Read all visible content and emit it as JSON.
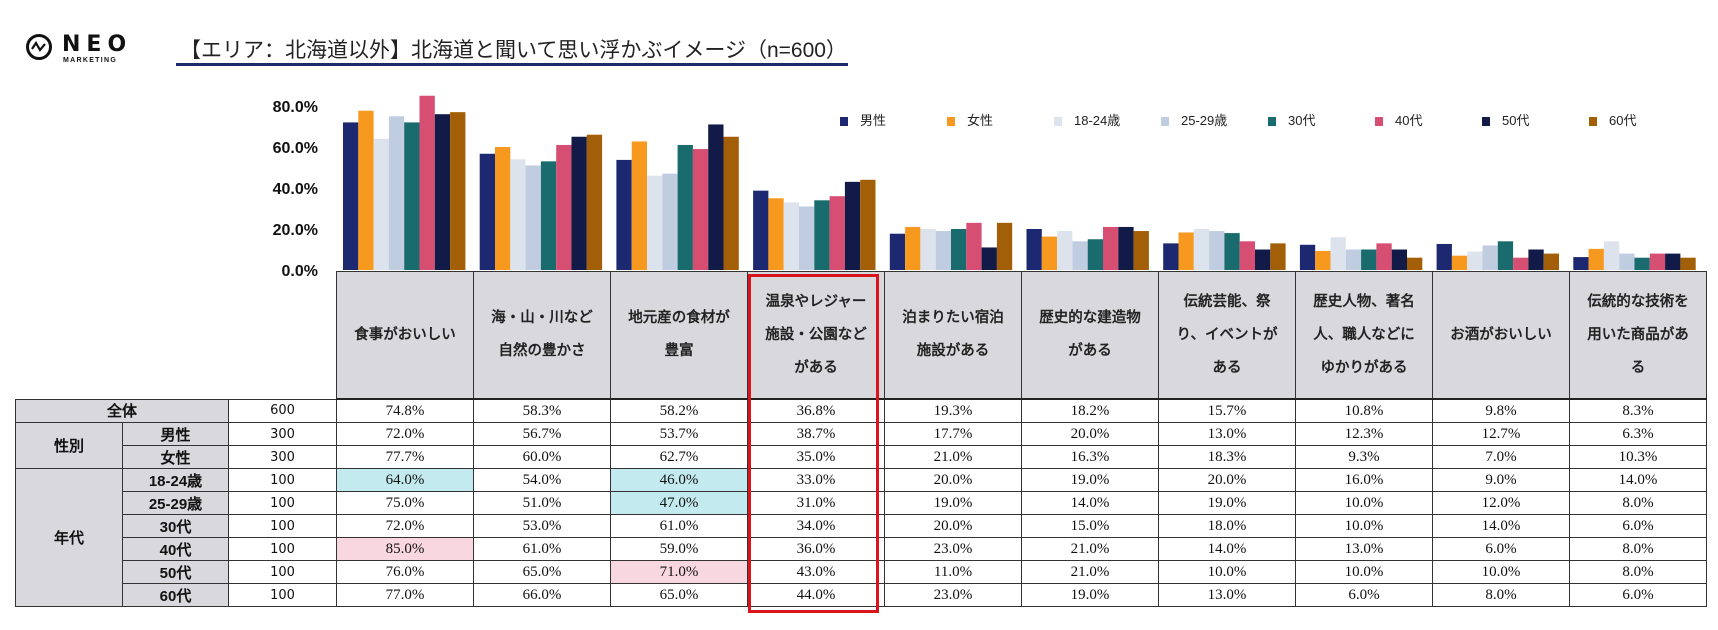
{
  "header": {
    "logo_main": "NEO",
    "logo_sub": "MARKETING",
    "title": "【エリア：北海道以外】北海道と聞いて思い浮かぶイメージ（n=600）"
  },
  "colors": {
    "title_underline": "#1f2a6b",
    "highlight_box": "#d9151b",
    "cell_high": "#f8d7e1",
    "cell_low": "#c3eaee",
    "header_bg": "#d9d8dc"
  },
  "chart_data": {
    "type": "bar",
    "title": "【エリア：北海道以外】北海道と聞いて思い浮かぶイメージ（n=600）",
    "xlabel": "",
    "ylabel": "",
    "ylim": [
      0,
      80
    ],
    "yticks": [
      "0.0%",
      "20.0%",
      "40.0%",
      "60.0%",
      "80.0%"
    ],
    "legend_position": "top-right",
    "categories": [
      "食事がおいしい",
      "海・山・川など自然の豊かさ",
      "地元産の食材が豊富",
      "温泉やレジャー施設・公園などがある",
      "泊まりたい宿泊施設がある",
      "歴史的な建造物がある",
      "伝統芸能、祭り、イベントがある",
      "歴史人物、著名人、職人などにゆかりがある",
      "お酒がおいしい",
      "伝統的な技術を用いた商品がある"
    ],
    "series": [
      {
        "name": "男性",
        "color": "#1c2870",
        "values": [
          72.0,
          56.7,
          53.7,
          38.7,
          17.7,
          20.0,
          13.0,
          12.3,
          12.7,
          6.3
        ]
      },
      {
        "name": "女性",
        "color": "#f7991f",
        "values": [
          77.7,
          60.0,
          62.7,
          35.0,
          21.0,
          16.3,
          18.3,
          9.3,
          7.0,
          10.3
        ]
      },
      {
        "name": "18-24歳",
        "color": "#dde3ed",
        "values": [
          64.0,
          54.0,
          46.0,
          33.0,
          20.0,
          19.0,
          20.0,
          16.0,
          9.0,
          14.0
        ]
      },
      {
        "name": "25-29歳",
        "color": "#c0cde0",
        "values": [
          75.0,
          51.0,
          47.0,
          31.0,
          19.0,
          14.0,
          19.0,
          10.0,
          12.0,
          8.0
        ]
      },
      {
        "name": "30代",
        "color": "#1a6b6d",
        "values": [
          72.0,
          53.0,
          61.0,
          34.0,
          20.0,
          15.0,
          18.0,
          10.0,
          14.0,
          6.0
        ]
      },
      {
        "name": "40代",
        "color": "#d64f72",
        "values": [
          85.0,
          61.0,
          59.0,
          36.0,
          23.0,
          21.0,
          14.0,
          13.0,
          6.0,
          8.0
        ]
      },
      {
        "name": "50代",
        "color": "#121a48",
        "values": [
          76.0,
          65.0,
          71.0,
          43.0,
          11.0,
          21.0,
          10.0,
          10.0,
          10.0,
          8.0
        ]
      },
      {
        "name": "60代",
        "color": "#a35f08",
        "values": [
          77.0,
          66.0,
          65.0,
          44.0,
          23.0,
          19.0,
          13.0,
          6.0,
          8.0,
          6.0
        ]
      }
    ]
  },
  "table": {
    "headers": [
      [
        "食事がおいしい"
      ],
      [
        "海・山・川など",
        "自然の豊かさ"
      ],
      [
        "地元産の食材が",
        "豊富"
      ],
      [
        "温泉やレジャー",
        "施設・公園など",
        "がある"
      ],
      [
        "泊まりたい宿泊",
        "施設がある"
      ],
      [
        "歴史的な建造物",
        "がある"
      ],
      [
        "伝統芸能、祭",
        "り、イベントが",
        "ある"
      ],
      [
        "歴史人物、著名",
        "人、職人などに",
        "ゆかりがある"
      ],
      [
        "お酒がおいしい"
      ],
      [
        "伝統的な技術を",
        "用いた商品があ",
        "る"
      ]
    ],
    "highlighted_column": 3,
    "groups": {
      "total": "全体",
      "gender": "性別",
      "age": "年代"
    },
    "rows": [
      {
        "label": "全体",
        "n": "600",
        "values": [
          "74.8%",
          "58.3%",
          "58.2%",
          "36.8%",
          "19.3%",
          "18.2%",
          "15.7%",
          "10.8%",
          "9.8%",
          "8.3%"
        ],
        "marks": {}
      },
      {
        "label": "男性",
        "n": "300",
        "values": [
          "72.0%",
          "56.7%",
          "53.7%",
          "38.7%",
          "17.7%",
          "20.0%",
          "13.0%",
          "12.3%",
          "12.7%",
          "6.3%"
        ],
        "marks": {}
      },
      {
        "label": "女性",
        "n": "300",
        "values": [
          "77.7%",
          "60.0%",
          "62.7%",
          "35.0%",
          "21.0%",
          "16.3%",
          "18.3%",
          "9.3%",
          "7.0%",
          "10.3%"
        ],
        "marks": {}
      },
      {
        "label": "18-24歳",
        "n": "100",
        "values": [
          "64.0%",
          "54.0%",
          "46.0%",
          "33.0%",
          "20.0%",
          "19.0%",
          "20.0%",
          "16.0%",
          "9.0%",
          "14.0%"
        ],
        "marks": {
          "0": "low",
          "2": "low"
        }
      },
      {
        "label": "25-29歳",
        "n": "100",
        "values": [
          "75.0%",
          "51.0%",
          "47.0%",
          "31.0%",
          "19.0%",
          "14.0%",
          "19.0%",
          "10.0%",
          "12.0%",
          "8.0%"
        ],
        "marks": {
          "2": "low"
        }
      },
      {
        "label": "30代",
        "n": "100",
        "values": [
          "72.0%",
          "53.0%",
          "61.0%",
          "34.0%",
          "20.0%",
          "15.0%",
          "18.0%",
          "10.0%",
          "14.0%",
          "6.0%"
        ],
        "marks": {}
      },
      {
        "label": "40代",
        "n": "100",
        "values": [
          "85.0%",
          "61.0%",
          "59.0%",
          "36.0%",
          "23.0%",
          "21.0%",
          "14.0%",
          "13.0%",
          "6.0%",
          "8.0%"
        ],
        "marks": {
          "0": "high"
        }
      },
      {
        "label": "50代",
        "n": "100",
        "values": [
          "76.0%",
          "65.0%",
          "71.0%",
          "43.0%",
          "11.0%",
          "21.0%",
          "10.0%",
          "10.0%",
          "10.0%",
          "8.0%"
        ],
        "marks": {
          "2": "high"
        }
      },
      {
        "label": "60代",
        "n": "100",
        "values": [
          "77.0%",
          "66.0%",
          "65.0%",
          "44.0%",
          "23.0%",
          "19.0%",
          "13.0%",
          "6.0%",
          "8.0%",
          "6.0%"
        ],
        "marks": {}
      }
    ]
  }
}
